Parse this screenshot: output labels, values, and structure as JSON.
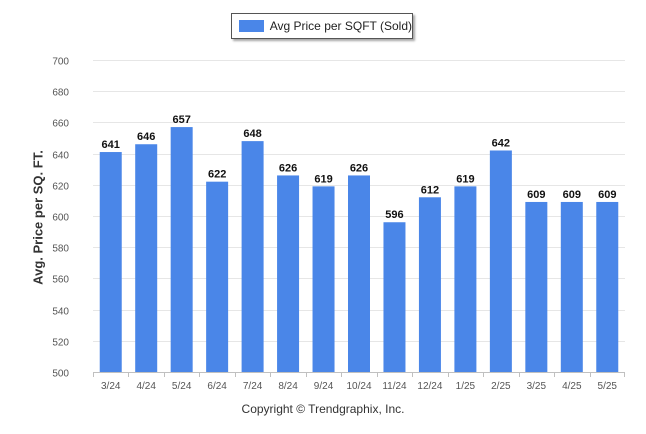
{
  "chart_data": {
    "type": "bar",
    "categories": [
      "3/24",
      "4/24",
      "5/24",
      "6/24",
      "7/24",
      "8/24",
      "9/24",
      "10/24",
      "11/24",
      "12/24",
      "1/25",
      "2/25",
      "3/25",
      "4/25",
      "5/25"
    ],
    "series": [
      {
        "name": "Avg Price per SQFT (Sold)",
        "values": [
          641,
          646,
          657,
          622,
          648,
          626,
          619,
          626,
          596,
          612,
          619,
          642,
          609,
          609,
          609
        ]
      }
    ],
    "title": "",
    "xlabel": "",
    "ylabel": "Avg. Price per SQ. FT.",
    "ylim": [
      500,
      700
    ],
    "yticks": [
      500,
      520,
      540,
      560,
      580,
      600,
      620,
      640,
      660,
      680,
      700
    ],
    "grid": true,
    "legend_position": "top-center",
    "bar_color": "#4a86e8",
    "data_labels": true
  },
  "legend": {
    "label": "Avg Price per SQFT (Sold)"
  },
  "footer": {
    "copyright": "Copyright © Trendgraphix, Inc."
  }
}
